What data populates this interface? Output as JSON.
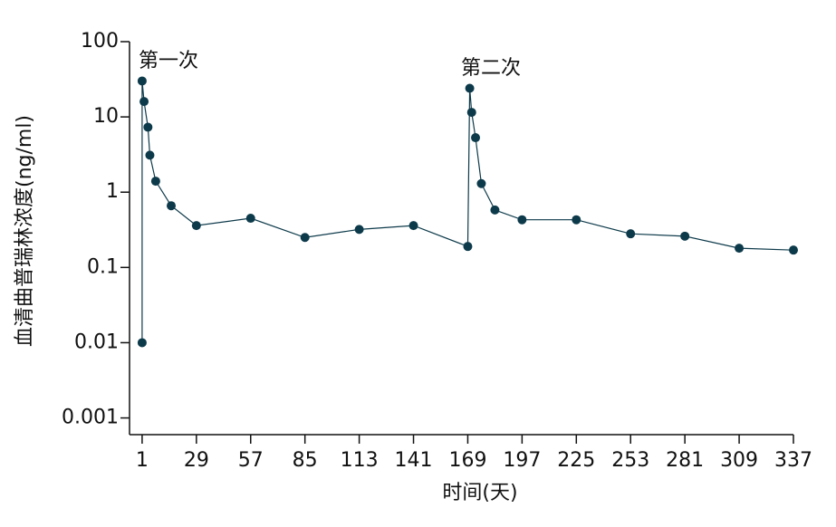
{
  "chart_data": {
    "type": "line",
    "y_label": "血清曲普瑞林浓度(ng/ml)",
    "x_label": "时间(天)",
    "annotations": [
      "第一次",
      "第二次"
    ],
    "x": [
      1,
      1,
      2,
      4,
      5,
      8,
      16,
      29,
      57,
      85,
      113,
      141,
      169,
      170,
      171,
      173,
      176,
      183,
      197,
      225,
      253,
      281,
      309,
      337
    ],
    "series": [
      {
        "color": "#0d3a4a",
        "values": [
          0.01,
          30,
          16,
          7.3,
          3.1,
          1.4,
          0.66,
          0.36,
          0.45,
          0.25,
          0.32,
          0.36,
          0.19,
          24,
          11.5,
          5.3,
          1.3,
          0.58,
          0.43,
          0.43,
          0.28,
          0.26,
          0.18,
          0.17
        ]
      }
    ],
    "xlim": [
      -5.5,
      337
    ],
    "xticks": [
      1,
      29,
      57,
      85,
      113,
      141,
      169,
      197,
      225,
      253,
      281,
      309,
      337
    ],
    "ylim": [
      0.0006,
      100
    ],
    "yticks": [
      0.001,
      0.01,
      0.1,
      1,
      10,
      100
    ],
    "log_y": true
  }
}
